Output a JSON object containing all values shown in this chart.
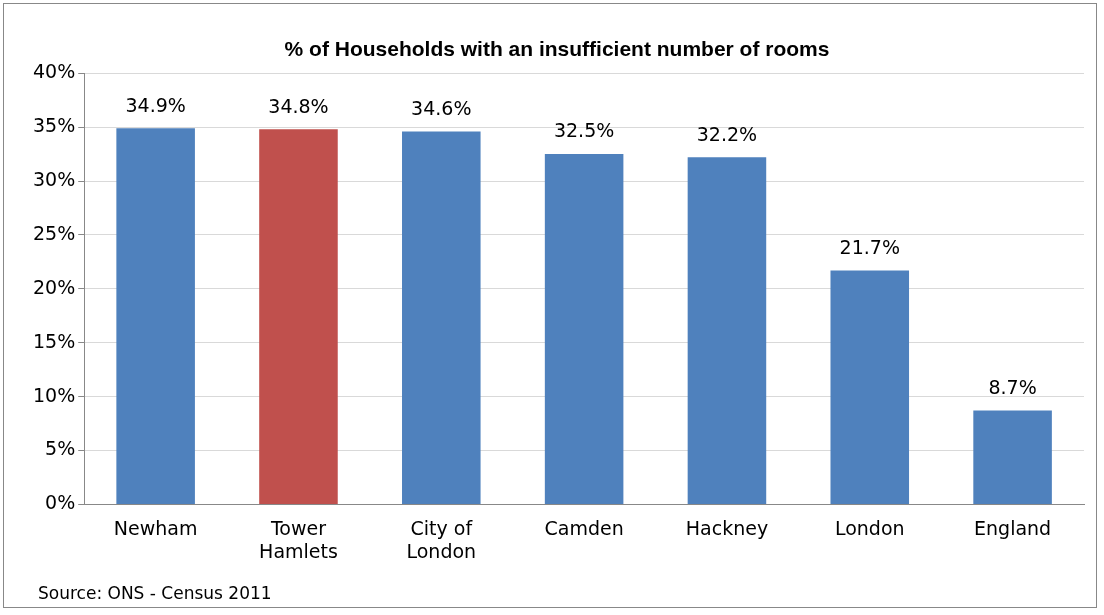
{
  "chart_data": {
    "type": "bar",
    "title": "% of Households with an insufficient number of rooms",
    "categories": [
      "Newham",
      "Tower Hamlets",
      "City of London",
      "Camden",
      "Hackney",
      "London",
      "England"
    ],
    "values": [
      34.9,
      34.8,
      34.6,
      32.5,
      32.2,
      21.7,
      8.7
    ],
    "colors": [
      "#4f81bd",
      "#c0504d",
      "#4f81bd",
      "#4f81bd",
      "#4f81bd",
      "#4f81bd",
      "#4f81bd"
    ],
    "value_labels": [
      "34.9%",
      "34.8%",
      "34.6%",
      "32.5%",
      "32.2%",
      "21.7%",
      "8.7%"
    ],
    "ylim": [
      0,
      40
    ],
    "yticks": [
      {
        "value": 0,
        "label": "0%"
      },
      {
        "value": 5,
        "label": "5%"
      },
      {
        "value": 10,
        "label": "10%"
      },
      {
        "value": 15,
        "label": "15%"
      },
      {
        "value": 20,
        "label": "20%"
      },
      {
        "value": 25,
        "label": "25%"
      },
      {
        "value": 30,
        "label": "30%"
      },
      {
        "value": 35,
        "label": "35%"
      },
      {
        "value": 40,
        "label": "40%"
      }
    ],
    "grid": "y",
    "legend": false,
    "annotations": [
      "Source: ONS - Census 2011"
    ]
  }
}
